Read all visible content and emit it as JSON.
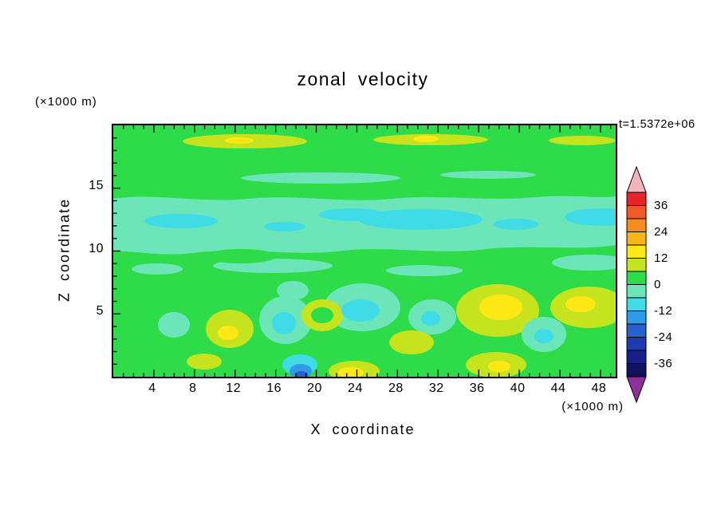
{
  "page": {
    "background_color": "#ffffff",
    "text_color": "#000000"
  },
  "chart_data": {
    "type": "heatmap",
    "title": "zonal velocity",
    "timestamp_label": "t=1.5372e+06",
    "xlabel": "X coordinate",
    "ylabel": "Z coordinate",
    "x_units_label": "(×1000 m)",
    "y_units_label": "(×1000 m)",
    "xlim": [
      0,
      49.5
    ],
    "ylim": [
      0,
      20
    ],
    "x_ticks": [
      4,
      8,
      12,
      16,
      20,
      24,
      28,
      32,
      36,
      40,
      44,
      48
    ],
    "y_ticks": [
      5,
      10,
      15
    ],
    "minor_tick_step": 1,
    "grid": false,
    "legend_position": "none",
    "colorbar": {
      "position": "right",
      "tick_labels": [
        36,
        24,
        12,
        0,
        -12,
        -24,
        -36
      ],
      "levels": [
        -42,
        -36,
        -30,
        -24,
        -18,
        -12,
        -6,
        0,
        6,
        12,
        18,
        24,
        30,
        36,
        42
      ],
      "segment_colors_top_to_bottom": [
        "#e8242a",
        "#f05a28",
        "#f68b1f",
        "#fbb616",
        "#fde817",
        "#c6e41e",
        "#2edc4a",
        "#6ce6b8",
        "#3fdce8",
        "#2f9ae8",
        "#2a5fd0",
        "#2038b0",
        "#191f8a",
        "#10125e"
      ],
      "over_arrow_color": "#f4b4bc",
      "under_arrow_color": "#8f2f9b"
    },
    "field_palette": {
      "green_0_to_6": "#2edc4a",
      "yellow_green_6_to_12": "#c6e41e",
      "yellow_12_to_18": "#ffe814",
      "aquamarine_minus6_to_0": "#6ce6b8",
      "cyan_minus12_to_minus6": "#3fdce8",
      "blue_minus18_to_minus12": "#2f9ae8",
      "dark_blue_minus24_to_minus18": "#2a5fd0"
    },
    "x_sample": [
      2,
      6,
      10,
      14,
      18,
      22,
      26,
      30,
      34,
      38,
      42,
      46
    ],
    "z_sample": [
      1,
      3,
      5,
      7,
      9,
      11,
      13,
      15,
      17,
      19
    ],
    "values_rows_z_ascending": [
      [
        2,
        3,
        8,
        2,
        -20,
        13,
        3,
        2,
        2,
        9,
        2,
        2
      ],
      [
        2,
        -5,
        9,
        1,
        -8,
        5,
        -4,
        7,
        2,
        7,
        -8,
        3
      ],
      [
        1,
        2,
        10,
        3,
        -8,
        7,
        -10,
        -5,
        8,
        14,
        -3,
        13
      ],
      [
        1,
        2,
        3,
        1,
        -3,
        2,
        -4,
        1,
        6,
        8,
        2,
        9
      ],
      [
        1,
        -2,
        -4,
        -3,
        1,
        2,
        -3,
        -4,
        1,
        1,
        -2,
        -4
      ],
      [
        -4,
        -5,
        -4,
        -4,
        -5,
        -4,
        -7,
        -8,
        -5,
        -4,
        -4,
        -7
      ],
      [
        -4,
        -7,
        -4,
        -4,
        -4,
        -5,
        -8,
        -8,
        -5,
        -4,
        -4,
        -8
      ],
      [
        1,
        1,
        -2,
        -4,
        -3,
        -2,
        1,
        1,
        1,
        1,
        1,
        -2
      ],
      [
        1,
        1,
        2,
        1,
        1,
        2,
        1,
        1,
        1,
        1,
        2,
        1
      ],
      [
        2,
        5,
        8,
        4,
        2,
        7,
        9,
        5,
        2,
        2,
        6,
        4
      ]
    ]
  }
}
